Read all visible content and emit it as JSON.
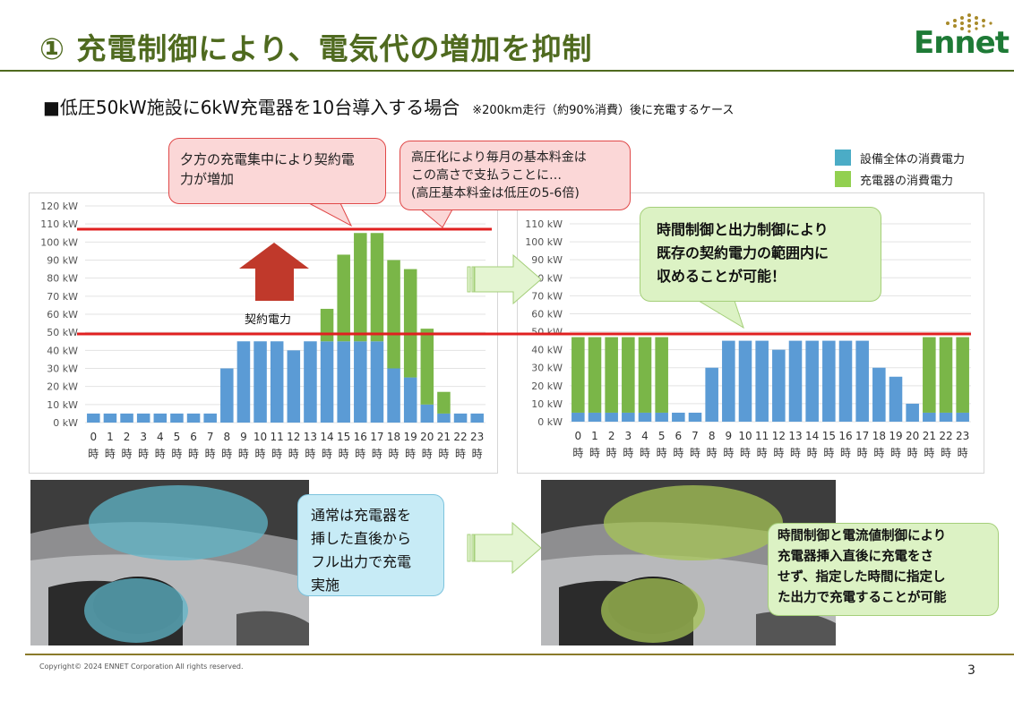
{
  "slide": {
    "title": "① 充電制御により、電気代の増加を抑制",
    "logo_text": "Ennet",
    "subtitle": "■低圧50kW施設に6kW充電器を10台導入する場合",
    "subtitle_note": "※200km走行（約90%消費）後に充電するケース",
    "copyright": "Copyright© 2024 ENNET Corporation All rights reserved.",
    "page_number": "3"
  },
  "legend": {
    "facility": "設備全体の消費電力",
    "charger": "充電器の消費電力"
  },
  "callouts": {
    "evening": [
      "夕方の充電集中により契約電",
      "力が増加"
    ],
    "basic_fee": [
      "高圧化により毎月の基本料金は",
      "この高さで支払うことに…",
      "(高圧基本料金は低圧の5-6倍)"
    ],
    "controlled": [
      "時間制御と出力制御により",
      "既存の契約電力の範囲内に",
      "収めることが可能！"
    ],
    "normal": [
      "通常は充電器を",
      "挿した直後から",
      "フル出力で充電",
      "実施"
    ],
    "controlled_charging": [
      "時間制御と電流値制御により",
      "充電器挿入直後に充電をさ",
      "せず、指定した時間に指定し",
      "た出力で充電することが可能"
    ]
  },
  "contract_label": "契約電力",
  "colors": {
    "facility": "#5b9bd5",
    "charger": "#7ab648",
    "title": "#4f6a1f",
    "red_line": "#e02020",
    "legend_facility": "#4bacc6",
    "legend_charger": "#92d050"
  },
  "chart_data": [
    {
      "type": "bar",
      "stacked": true,
      "categories": [
        "0",
        "1",
        "2",
        "3",
        "4",
        "5",
        "6",
        "7",
        "8",
        "9",
        "10",
        "11",
        "12",
        "13",
        "14",
        "15",
        "16",
        "17",
        "18",
        "19",
        "20",
        "21",
        "22",
        "23"
      ],
      "category_suffix": "時",
      "series": [
        {
          "name": "設備全体の消費電力",
          "values": [
            5,
            5,
            5,
            5,
            5,
            5,
            5,
            5,
            30,
            45,
            45,
            45,
            40,
            45,
            45,
            45,
            45,
            45,
            30,
            25,
            10,
            5,
            5,
            5
          ]
        },
        {
          "name": "充電器の消費電力",
          "values": [
            0,
            0,
            0,
            0,
            0,
            0,
            0,
            0,
            0,
            0,
            0,
            0,
            0,
            0,
            18,
            48,
            60,
            60,
            60,
            60,
            42,
            12,
            0,
            0
          ]
        }
      ],
      "yticks": [
        "0 kW",
        "10 kW",
        "20 kW",
        "30 kW",
        "40 kW",
        "50 kW",
        "60 kW",
        "70 kW",
        "80 kW",
        "90 kW",
        "100 kW",
        "110 kW",
        "120 kW"
      ],
      "ylim": [
        0,
        120
      ],
      "grid": true
    },
    {
      "type": "bar",
      "stacked": true,
      "categories": [
        "0",
        "1",
        "2",
        "3",
        "4",
        "5",
        "6",
        "7",
        "8",
        "9",
        "10",
        "11",
        "12",
        "13",
        "14",
        "15",
        "16",
        "17",
        "18",
        "19",
        "20",
        "21",
        "22",
        "23"
      ],
      "category_suffix": "時",
      "series": [
        {
          "name": "設備全体の消費電力",
          "values": [
            5,
            5,
            5,
            5,
            5,
            5,
            5,
            5,
            30,
            45,
            45,
            45,
            40,
            45,
            45,
            45,
            45,
            45,
            30,
            25,
            10,
            5,
            5,
            5
          ]
        },
        {
          "name": "充電器の消費電力",
          "values": [
            42,
            42,
            42,
            42,
            42,
            42,
            0,
            0,
            0,
            0,
            0,
            0,
            0,
            0,
            0,
            0,
            0,
            0,
            0,
            0,
            0,
            42,
            42,
            42
          ]
        }
      ],
      "yticks": [
        "0 kW",
        "10 kW",
        "20 kW",
        "30 kW",
        "40 kW",
        "50 kW",
        "60 kW",
        "70 kW",
        "80 kW",
        "90 kW",
        "100 kW",
        "110 kW"
      ],
      "ylim": [
        0,
        110
      ],
      "grid": true
    }
  ]
}
